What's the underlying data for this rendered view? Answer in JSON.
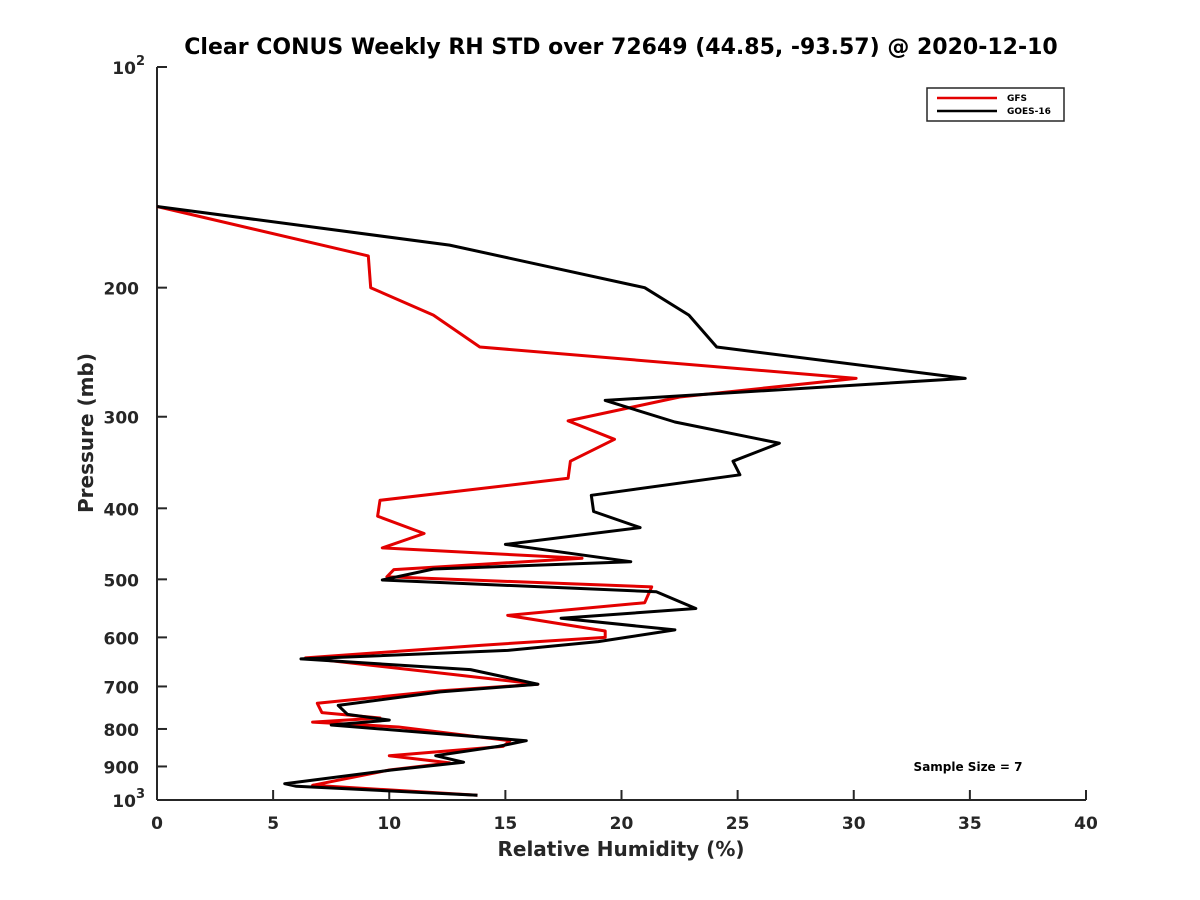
{
  "chart_data": {
    "type": "line",
    "title": "Clear CONUS Weekly RH STD over 72649 (44.85, -93.57) @ 2020-12-10",
    "xlabel": "Relative Humidity (%)",
    "ylabel": "Pressure (mb)",
    "xlim": [
      0,
      40
    ],
    "ylim": [
      100,
      1000
    ],
    "yscale": "log",
    "y_reversed": true,
    "x_ticks": [
      0,
      5,
      10,
      15,
      20,
      25,
      30,
      35,
      40
    ],
    "y_ticks": [
      {
        "value": 100,
        "base": "10",
        "exp": "2"
      },
      {
        "value": 200,
        "label": "200"
      },
      {
        "value": 300,
        "label": "300"
      },
      {
        "value": 400,
        "label": "400"
      },
      {
        "value": 500,
        "label": "500"
      },
      {
        "value": 600,
        "label": "600"
      },
      {
        "value": 700,
        "label": "700"
      },
      {
        "value": 800,
        "label": "800"
      },
      {
        "value": 900,
        "label": "900"
      },
      {
        "value": 1000,
        "base": "10",
        "exp": "3"
      }
    ],
    "grid": false,
    "legend_position": "top-right",
    "annotation": "Sample Size = 7",
    "series": [
      {
        "name": "GFS",
        "color": "#e30000",
        "points": [
          [
            0.0,
            155
          ],
          [
            9.1,
            181
          ],
          [
            9.2,
            200
          ],
          [
            11.9,
            218
          ],
          [
            13.9,
            241
          ],
          [
            30.1,
            266
          ],
          [
            22.5,
            282
          ],
          [
            17.7,
            304
          ],
          [
            19.7,
            322
          ],
          [
            17.8,
            345
          ],
          [
            17.7,
            364
          ],
          [
            9.6,
            390
          ],
          [
            9.5,
            410
          ],
          [
            11.5,
            433
          ],
          [
            9.7,
            453
          ],
          [
            18.3,
            468
          ],
          [
            10.2,
            485
          ],
          [
            9.9,
            496
          ],
          [
            21.3,
            512
          ],
          [
            21.0,
            538
          ],
          [
            15.1,
            560
          ],
          [
            19.3,
            588
          ],
          [
            19.3,
            600
          ],
          [
            14.0,
            615
          ],
          [
            6.4,
            640
          ],
          [
            12.9,
            675
          ],
          [
            16.4,
            695
          ],
          [
            12.1,
            710
          ],
          [
            6.9,
            738
          ],
          [
            7.1,
            760
          ],
          [
            9.6,
            773
          ],
          [
            6.7,
            783
          ],
          [
            10.4,
            795
          ],
          [
            15.2,
            830
          ],
          [
            14.9,
            845
          ],
          [
            10.0,
            870
          ],
          [
            12.6,
            890
          ],
          [
            10.0,
            910
          ],
          [
            6.7,
            955
          ],
          [
            13.8,
            985
          ]
        ]
      },
      {
        "name": "GOES-16",
        "color": "#000000",
        "points": [
          [
            0.0,
            155
          ],
          [
            12.6,
            175
          ],
          [
            21.0,
            200
          ],
          [
            22.9,
            218
          ],
          [
            24.1,
            241
          ],
          [
            34.8,
            266
          ],
          [
            19.3,
            285
          ],
          [
            22.3,
            305
          ],
          [
            26.8,
            326
          ],
          [
            24.8,
            345
          ],
          [
            25.1,
            360
          ],
          [
            18.7,
            384
          ],
          [
            18.8,
            404
          ],
          [
            20.8,
            425
          ],
          [
            15.0,
            448
          ],
          [
            20.4,
            473
          ],
          [
            11.9,
            484
          ],
          [
            9.7,
            501
          ],
          [
            21.5,
            520
          ],
          [
            23.2,
            548
          ],
          [
            17.4,
            565
          ],
          [
            22.3,
            586
          ],
          [
            19.0,
            608
          ],
          [
            15.1,
            625
          ],
          [
            6.2,
            642
          ],
          [
            13.5,
            664
          ],
          [
            16.4,
            695
          ],
          [
            12.2,
            712
          ],
          [
            7.8,
            743
          ],
          [
            8.2,
            764
          ],
          [
            10.0,
            778
          ],
          [
            7.5,
            790
          ],
          [
            15.9,
            830
          ],
          [
            14.7,
            845
          ],
          [
            12.0,
            870
          ],
          [
            13.2,
            888
          ],
          [
            10.1,
            910
          ],
          [
            5.5,
            950
          ],
          [
            6.0,
            958
          ],
          [
            13.8,
            985
          ]
        ]
      }
    ]
  }
}
